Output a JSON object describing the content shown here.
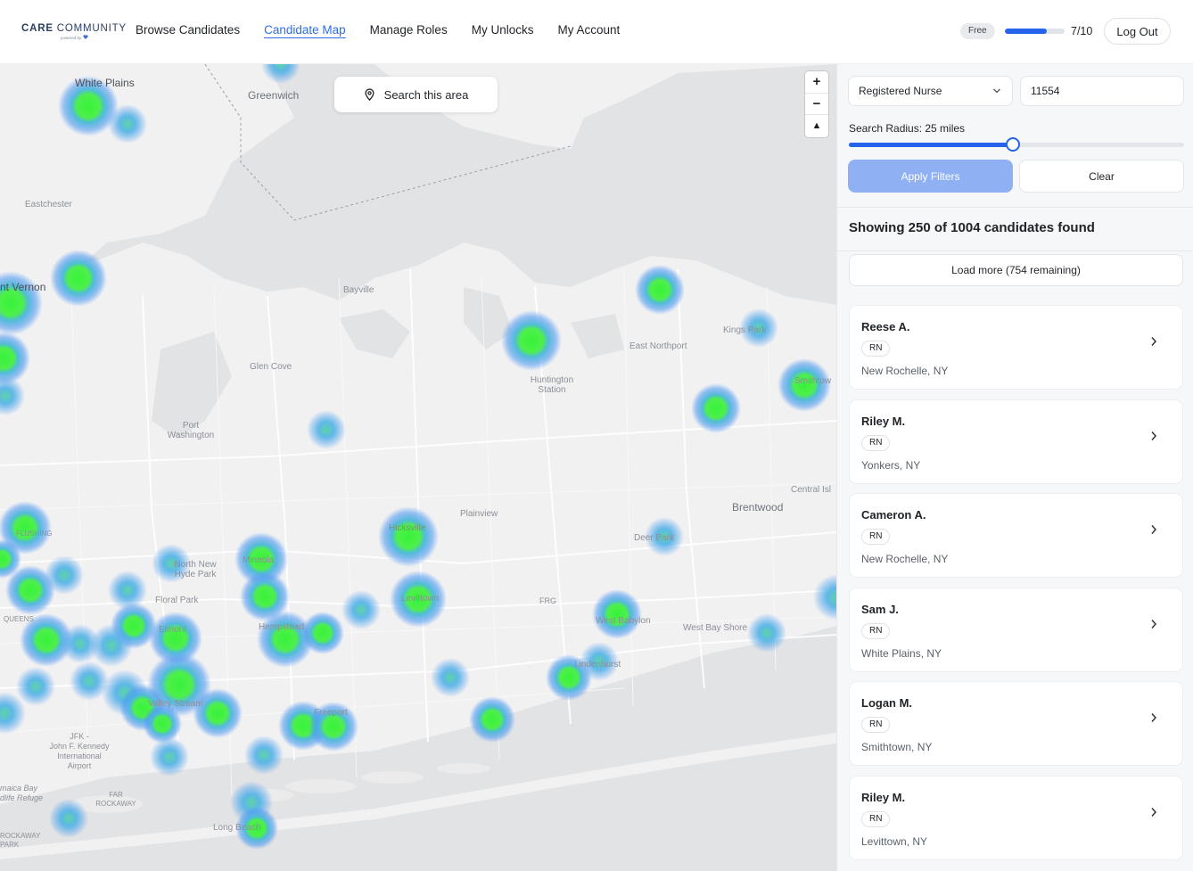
{
  "logo": {
    "brand_bold": "CARE",
    "brand_light": " COMMUNITY",
    "tagline": "powered by"
  },
  "nav": [
    {
      "label": "Browse Candidates",
      "active": false
    },
    {
      "label": "Candidate Map",
      "active": true
    },
    {
      "label": "Manage Roles",
      "active": false
    },
    {
      "label": "My Unlocks",
      "active": false
    },
    {
      "label": "My Account",
      "active": false
    }
  ],
  "account": {
    "plan": "Free",
    "usage_text": "7/10",
    "usage_fraction": 0.7,
    "logout_label": "Log Out"
  },
  "map": {
    "search_area_label": "Search this area",
    "zoom_in": "+",
    "zoom_out": "−",
    "compass": "▲",
    "labels": {
      "white_plains": "White Plains",
      "greenwich": "Greenwich",
      "eastchester": "Eastchester",
      "mount_vernon": "nt Vernon",
      "bayville": "Bayville",
      "glen_cove": "Glen Cove",
      "port_washington_1": "Port",
      "port_washington_2": "Washington",
      "huntington_1": "Huntington",
      "huntington_2": "Station",
      "east_northport": "East Northport",
      "kings_park": "Kings Park",
      "smithtown": "Smithtow",
      "central_islip": "Central Isl",
      "brentwood": "Brentwood",
      "plainview": "Plainview",
      "hicksville": "Hicksville",
      "deer_park": "Deer Park",
      "mineola": "Mineola",
      "north_new_1": "North New",
      "north_new_2": "Hyde Park",
      "floral_park": "Floral Park",
      "levittown": "Levittown",
      "frg": "FRG",
      "west_babylon": "West Babylon",
      "west_bay_shore": "West Bay Shore",
      "hempstead": "Hempstead",
      "elmont": "Elmont",
      "lindenhurst": "Lindenhurst",
      "queens": "QUEENS",
      "flushing": "FLUSHING",
      "valley_stream": "Valley Stream",
      "freeport": "Freeport",
      "jfk_1": "JFK -",
      "jfk_2": "John F. Kennedy",
      "jfk_3": "International",
      "jfk_4": "Airport",
      "jamaica_bay_1": "maica Bay",
      "jamaica_bay_2": "dlife Refuge",
      "far_1": "FAR",
      "far_2": "ROCKAWAY",
      "long_beach": "Long Beach",
      "rockaway_1": "ROCKAWAY",
      "rockaway_2": "PARK"
    }
  },
  "filters": {
    "role_value": "Registered Nurse",
    "zip_value": "11554",
    "radius_label": "Search Radius: 25 miles",
    "radius_fraction": 0.49,
    "apply_label": "Apply Filters",
    "clear_label": "Clear"
  },
  "results": {
    "summary": "Showing 250 of 1004 candidates found",
    "load_more_label": "Load more (754 remaining)"
  },
  "candidates": [
    {
      "name": "Reese A.",
      "role": "RN",
      "location": "New Rochelle, NY"
    },
    {
      "name": "Riley M.",
      "role": "RN",
      "location": "Yonkers, NY"
    },
    {
      "name": "Cameron A.",
      "role": "RN",
      "location": "New Rochelle, NY"
    },
    {
      "name": "Sam J.",
      "role": "RN",
      "location": "White Plains, NY"
    },
    {
      "name": "Logan M.",
      "role": "RN",
      "location": "Smithtown, NY"
    },
    {
      "name": "Riley M.",
      "role": "RN",
      "location": "Levittown, NY"
    }
  ],
  "colors": {
    "accent": "#2563eb",
    "apply_disabled": "#8fb1f3",
    "heat_core": "#39f03a",
    "heat_halo": "#4ba3f0"
  }
}
